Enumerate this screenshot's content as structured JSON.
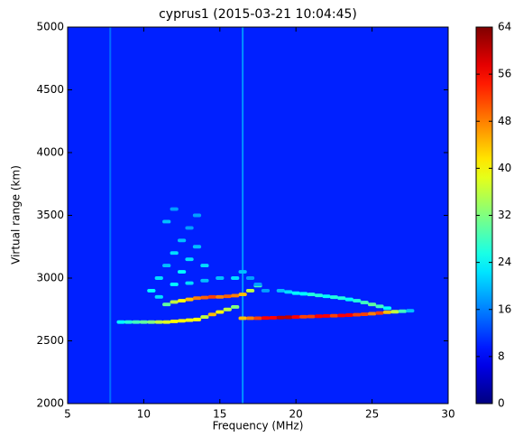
{
  "chart_data": {
    "type": "heatmap",
    "title": "cyprus1 (2015-03-21 10:04:45)",
    "xlabel": "Frequency (MHz)",
    "ylabel": "Virtual range (km)",
    "xlim": [
      5,
      30
    ],
    "ylim": [
      2000,
      5000
    ],
    "xticks": [
      5,
      10,
      15,
      20,
      25,
      30
    ],
    "yticks": [
      2000,
      2500,
      3000,
      3500,
      4000,
      4500,
      5000
    ],
    "colorbar": {
      "lim": [
        0,
        64
      ],
      "ticks": [
        0,
        8,
        16,
        24,
        32,
        40,
        48,
        56,
        64
      ]
    },
    "background_value": 10,
    "interference": {
      "x": [
        7.8,
        16.5
      ],
      "values": [
        18,
        22
      ]
    },
    "traces": [
      {
        "x": [
          8.5,
          9,
          9.5,
          10,
          10.5,
          11,
          11.5,
          12,
          12.5,
          13,
          13.5,
          14,
          14.5,
          15,
          15.5,
          16
        ],
        "y": [
          2650,
          2650,
          2650,
          2650,
          2650,
          2650,
          2650,
          2655,
          2660,
          2665,
          2670,
          2690,
          2710,
          2730,
          2750,
          2770
        ],
        "values": [
          24,
          26,
          28,
          30,
          32,
          36,
          38,
          40,
          40,
          40,
          40,
          36,
          44,
          40,
          36,
          32
        ]
      },
      {
        "x": [
          11.5,
          12,
          12.5,
          13,
          13.5,
          14,
          14.5,
          15,
          15.5,
          16,
          16.5,
          17,
          17.5
        ],
        "y": [
          2790,
          2810,
          2820,
          2830,
          2840,
          2845,
          2850,
          2850,
          2855,
          2860,
          2870,
          2900,
          2940
        ],
        "values": [
          30,
          36,
          40,
          44,
          48,
          50,
          52,
          48,
          50,
          48,
          44,
          36,
          28
        ]
      },
      {
        "x": [
          16.5,
          17,
          17.5,
          18,
          18.5,
          19,
          19.5,
          20,
          20.5,
          21,
          21.5,
          22,
          22.5,
          23,
          23.5,
          24,
          24.5,
          25,
          25.5,
          26,
          26.5,
          27,
          27.5
        ],
        "y": [
          2680,
          2680,
          2680,
          2682,
          2684,
          2686,
          2688,
          2690,
          2692,
          2694,
          2696,
          2698,
          2700,
          2702,
          2705,
          2708,
          2712,
          2716,
          2722,
          2728,
          2732,
          2736,
          2740
        ],
        "values": [
          44,
          48,
          52,
          56,
          56,
          60,
          60,
          56,
          52,
          52,
          56,
          56,
          52,
          56,
          56,
          52,
          52,
          48,
          52,
          44,
          36,
          28,
          20
        ]
      },
      {
        "x": [
          19,
          19.5,
          20,
          20.5,
          21,
          21.5,
          22,
          22.5,
          23,
          23.5,
          24,
          24.5,
          25,
          25.5,
          26
        ],
        "y": [
          2900,
          2890,
          2880,
          2875,
          2870,
          2862,
          2855,
          2848,
          2840,
          2830,
          2820,
          2805,
          2790,
          2775,
          2760
        ],
        "values": [
          20,
          22,
          24,
          24,
          26,
          26,
          24,
          26,
          26,
          24,
          26,
          28,
          30,
          28,
          24
        ]
      },
      {
        "x": [
          11,
          11.5,
          12,
          12.5,
          13,
          13.5,
          12,
          11.5,
          12.5,
          13,
          13.5,
          14,
          10.5,
          11,
          12,
          13,
          14,
          15,
          16,
          16.5,
          17,
          17.5,
          18
        ],
        "y": [
          3000,
          3100,
          3200,
          3300,
          3400,
          3500,
          3550,
          3450,
          3050,
          3150,
          3250,
          3100,
          2900,
          2850,
          2950,
          2960,
          2980,
          3000,
          3000,
          3050,
          3000,
          2950,
          2900
        ],
        "values": [
          22,
          20,
          22,
          20,
          18,
          18,
          18,
          20,
          24,
          22,
          20,
          22,
          24,
          22,
          24,
          22,
          20,
          20,
          22,
          20,
          18,
          18,
          18
        ]
      }
    ]
  }
}
